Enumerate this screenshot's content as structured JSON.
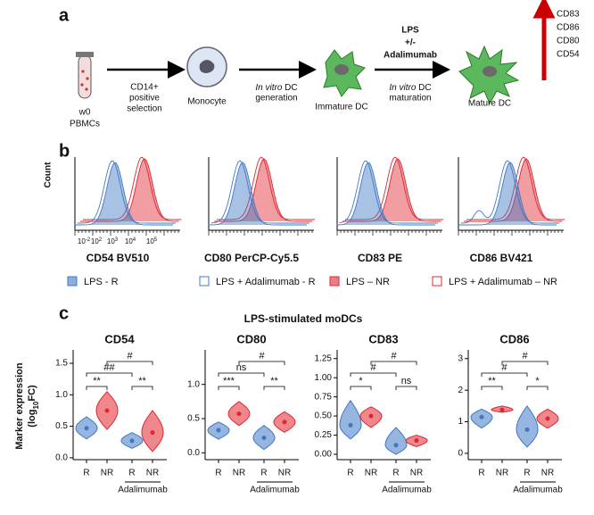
{
  "panel_a": {
    "label": "a",
    "sample": [
      "w0",
      "PBMCs"
    ],
    "step1": [
      "CD14+",
      "positive",
      "selection"
    ],
    "monocyte": "Monocyte",
    "step2": {
      "italic": "In vitro",
      "rest": " DC",
      "line2": "generation"
    },
    "immature": "Immature DC",
    "treatment": [
      "LPS",
      "+/-",
      "Adalimumab"
    ],
    "step3": {
      "italic": "In vitro",
      "rest": " DC",
      "line2": "maturation"
    },
    "mature": "Mature DC",
    "markers": [
      "CD83",
      "CD86",
      "CD80",
      "CD54"
    ]
  },
  "panel_b": {
    "label": "b",
    "y_label": "Count",
    "x_ticks": [
      {
        "base": "10",
        "exp": "-2"
      },
      {
        "base": "10",
        "exp": "2"
      },
      {
        "base": "10",
        "exp": "3"
      },
      {
        "base": "10",
        "exp": "4"
      },
      {
        "base": "10",
        "exp": "5"
      }
    ],
    "titles": [
      "CD54 BV510",
      "CD80 PerCP-Cy5.5",
      "CD83 PE",
      "CD86 BV421"
    ],
    "legend": [
      {
        "name": "LPS - R",
        "color": "#3f78c4",
        "filled": true
      },
      {
        "name": "LPS + Adalimumab - R",
        "color": "#3f78c4",
        "filled": false
      },
      {
        "name": "LPS – NR",
        "color": "#e0262e",
        "filled": true
      },
      {
        "name": "LPS + Adalimumab – NR",
        "color": "#e0262e",
        "filled": false
      }
    ]
  },
  "panel_c": {
    "label": "c",
    "title": "LPS-stimulated moDCs",
    "y_label": {
      "text": "Marker expression",
      "open": "(log",
      "sub": "10",
      "close": "FC)"
    },
    "group_label": "Adalimumab",
    "colors": [
      "#3f78c4",
      "#e0262e",
      "#3f78c4",
      "#e0262e"
    ],
    "charts": [
      {
        "type": "violin",
        "title": "CD54",
        "categories": [
          "R",
          "NR",
          "R",
          "NR"
        ],
        "ylim": [
          -0.03,
          1.6
        ],
        "yticks": [
          {
            "value": 0,
            "label": "0.0"
          },
          {
            "value": 0.5,
            "label": "0.5"
          },
          {
            "value": 1,
            "label": "1.0"
          },
          {
            "value": 1.5,
            "label": "1.5"
          }
        ],
        "groups": [
          {
            "min": 0.3,
            "median": 0.47,
            "max": 0.65
          },
          {
            "min": 0.45,
            "median": 0.75,
            "max": 1.05
          },
          {
            "min": 0.15,
            "median": 0.27,
            "max": 0.4
          },
          {
            "min": 0.1,
            "median": 0.4,
            "max": 0.75
          }
        ],
        "significance": [
          "**",
          "##",
          "#",
          "**"
        ]
      },
      {
        "type": "violin",
        "title": "CD80",
        "categories": [
          "R",
          "NR",
          "R",
          "NR"
        ],
        "ylim": [
          -0.1,
          1.4
        ],
        "yticks": [
          {
            "value": 0,
            "label": "0.0"
          },
          {
            "value": 0.5,
            "label": "0.5"
          },
          {
            "value": 1,
            "label": "1.0"
          }
        ],
        "groups": [
          {
            "min": 0.2,
            "median": 0.33,
            "max": 0.45
          },
          {
            "min": 0.4,
            "median": 0.57,
            "max": 0.75
          },
          {
            "min": 0.05,
            "median": 0.22,
            "max": 0.4
          },
          {
            "min": 0.3,
            "median": 0.45,
            "max": 0.6
          }
        ],
        "significance": [
          "***",
          "ns",
          "#",
          "**"
        ]
      },
      {
        "type": "violin",
        "title": "CD83",
        "categories": [
          "R",
          "NR",
          "R",
          "NR"
        ],
        "ylim": [
          -0.07,
          1.27
        ],
        "yticks": [
          {
            "value": 0,
            "label": "0.00"
          },
          {
            "value": 0.25,
            "label": "0.25"
          },
          {
            "value": 0.5,
            "label": "0.50"
          },
          {
            "value": 0.75,
            "label": "0.75"
          },
          {
            "value": 1,
            "label": "1.00"
          },
          {
            "value": 1.25,
            "label": "1.25"
          }
        ],
        "groups": [
          {
            "min": 0.2,
            "median": 0.38,
            "max": 0.7
          },
          {
            "min": 0.35,
            "median": 0.5,
            "max": 0.62
          },
          {
            "min": 0,
            "median": 0.12,
            "max": 0.35
          },
          {
            "min": 0.1,
            "median": 0.18,
            "max": 0.25
          }
        ],
        "significance": [
          "*",
          "#",
          "#",
          "ns"
        ]
      },
      {
        "type": "violin",
        "title": "CD86",
        "categories": [
          "R",
          "NR",
          "R",
          "NR"
        ],
        "ylim": [
          -0.2,
          3.05
        ],
        "yticks": [
          0,
          1,
          2,
          3
        ],
        "groups": [
          {
            "min": 0.8,
            "median": 1.15,
            "max": 1.4
          },
          {
            "min": 1.3,
            "median": 1.38,
            "max": 1.5
          },
          {
            "min": 0.2,
            "median": 0.75,
            "max": 1.5
          },
          {
            "min": 0.8,
            "median": 1.1,
            "max": 1.4
          }
        ],
        "significance": [
          "**",
          "#",
          "#",
          "*"
        ]
      }
    ]
  }
}
